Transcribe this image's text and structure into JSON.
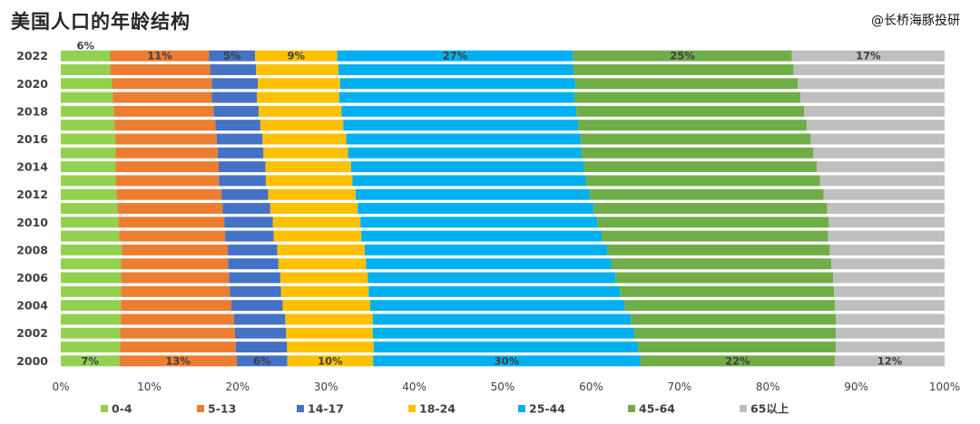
{
  "title": "美国人口的年龄结构",
  "source": "@长桥海豚投研",
  "chart_data": {
    "type": "bar",
    "orientation": "horizontal",
    "stacked": true,
    "normalized": true,
    "title": "美国人口的年龄结构",
    "categories": [
      "2000",
      "2001",
      "2002",
      "2003",
      "2004",
      "2005",
      "2006",
      "2007",
      "2008",
      "2009",
      "2010",
      "2011",
      "2012",
      "2013",
      "2014",
      "2015",
      "2016",
      "2017",
      "2018",
      "2019",
      "2020",
      "2021",
      "2022"
    ],
    "y_tick_labels": [
      "2000",
      "2002",
      "2004",
      "2006",
      "2008",
      "2010",
      "2012",
      "2014",
      "2016",
      "2018",
      "2020",
      "2022"
    ],
    "x_tick_labels": [
      "0%",
      "10%",
      "20%",
      "30%",
      "40%",
      "50%",
      "60%",
      "70%",
      "80%",
      "90%",
      "100%"
    ],
    "xlim": [
      0,
      100
    ],
    "legend_position": "bottom",
    "series": [
      {
        "name": "0-4",
        "color": "#92d050",
        "values": [
          6.6,
          6.7,
          6.7,
          6.8,
          6.8,
          6.8,
          6.8,
          6.8,
          6.9,
          6.6,
          6.5,
          6.4,
          6.3,
          6.2,
          6.2,
          6.2,
          6.2,
          6.1,
          6.0,
          5.9,
          5.8,
          5.6,
          5.6
        ]
      },
      {
        "name": "5-13",
        "color": "#ed7d31",
        "values": [
          13.3,
          13.1,
          13.0,
          12.8,
          12.5,
          12.3,
          12.2,
          12.1,
          12.0,
          12.0,
          12.0,
          11.9,
          11.9,
          11.7,
          11.7,
          11.6,
          11.5,
          11.4,
          11.3,
          11.2,
          11.3,
          11.3,
          11.2
        ]
      },
      {
        "name": "14-17",
        "color": "#4472c4",
        "values": [
          5.7,
          5.8,
          5.8,
          5.8,
          5.8,
          5.8,
          5.8,
          5.7,
          5.6,
          5.5,
          5.5,
          5.4,
          5.3,
          5.3,
          5.3,
          5.2,
          5.2,
          5.1,
          5.1,
          5.1,
          5.2,
          5.2,
          5.2
        ]
      },
      {
        "name": "18-24",
        "color": "#ffc000",
        "values": [
          9.7,
          9.8,
          9.8,
          9.9,
          9.9,
          9.9,
          9.9,
          9.9,
          9.9,
          9.9,
          9.9,
          9.9,
          9.9,
          9.8,
          9.7,
          9.6,
          9.5,
          9.4,
          9.4,
          9.3,
          9.3,
          9.3,
          9.3
        ]
      },
      {
        "name": "25-44",
        "color": "#00b0f0",
        "values": [
          30.2,
          29.9,
          29.6,
          29.2,
          28.8,
          28.4,
          28.0,
          27.7,
          27.4,
          27.2,
          26.8,
          26.7,
          26.5,
          26.4,
          26.4,
          26.5,
          26.6,
          26.6,
          26.6,
          26.6,
          26.6,
          26.6,
          26.7
        ]
      },
      {
        "name": "45-64",
        "color": "#70ad47",
        "values": [
          22.0,
          22.4,
          22.8,
          23.2,
          23.8,
          24.2,
          24.6,
          24.9,
          25.2,
          25.6,
          26.2,
          26.4,
          26.5,
          26.5,
          26.4,
          26.3,
          26.1,
          25.9,
          25.8,
          25.6,
          25.2,
          24.9,
          24.8
        ]
      },
      {
        "name": "65以上",
        "color": "#bfbfbf",
        "values": [
          12.4,
          12.3,
          12.3,
          12.3,
          12.4,
          12.5,
          12.6,
          12.8,
          13.0,
          13.2,
          13.1,
          13.3,
          13.7,
          14.1,
          14.5,
          14.9,
          15.2,
          15.6,
          15.9,
          16.3,
          16.6,
          17.1,
          17.3
        ]
      }
    ],
    "data_labels": [
      {
        "year": "2000",
        "series": "0-4",
        "text": "7%"
      },
      {
        "year": "2000",
        "series": "5-13",
        "text": "13%"
      },
      {
        "year": "2000",
        "series": "14-17",
        "text": "6%"
      },
      {
        "year": "2000",
        "series": "18-24",
        "text": "10%"
      },
      {
        "year": "2000",
        "series": "25-44",
        "text": "30%"
      },
      {
        "year": "2000",
        "series": "45-64",
        "text": "22%"
      },
      {
        "year": "2000",
        "series": "65以上",
        "text": "12%"
      },
      {
        "year": "2022",
        "series": "0-4",
        "text": "6%"
      },
      {
        "year": "2022",
        "series": "5-13",
        "text": "11%"
      },
      {
        "year": "2022",
        "series": "14-17",
        "text": "5%"
      },
      {
        "year": "2022",
        "series": "18-24",
        "text": "9%"
      },
      {
        "year": "2022",
        "series": "25-44",
        "text": "27%"
      },
      {
        "year": "2022",
        "series": "45-64",
        "text": "25%"
      },
      {
        "year": "2022",
        "series": "65以上",
        "text": "17%"
      }
    ]
  }
}
